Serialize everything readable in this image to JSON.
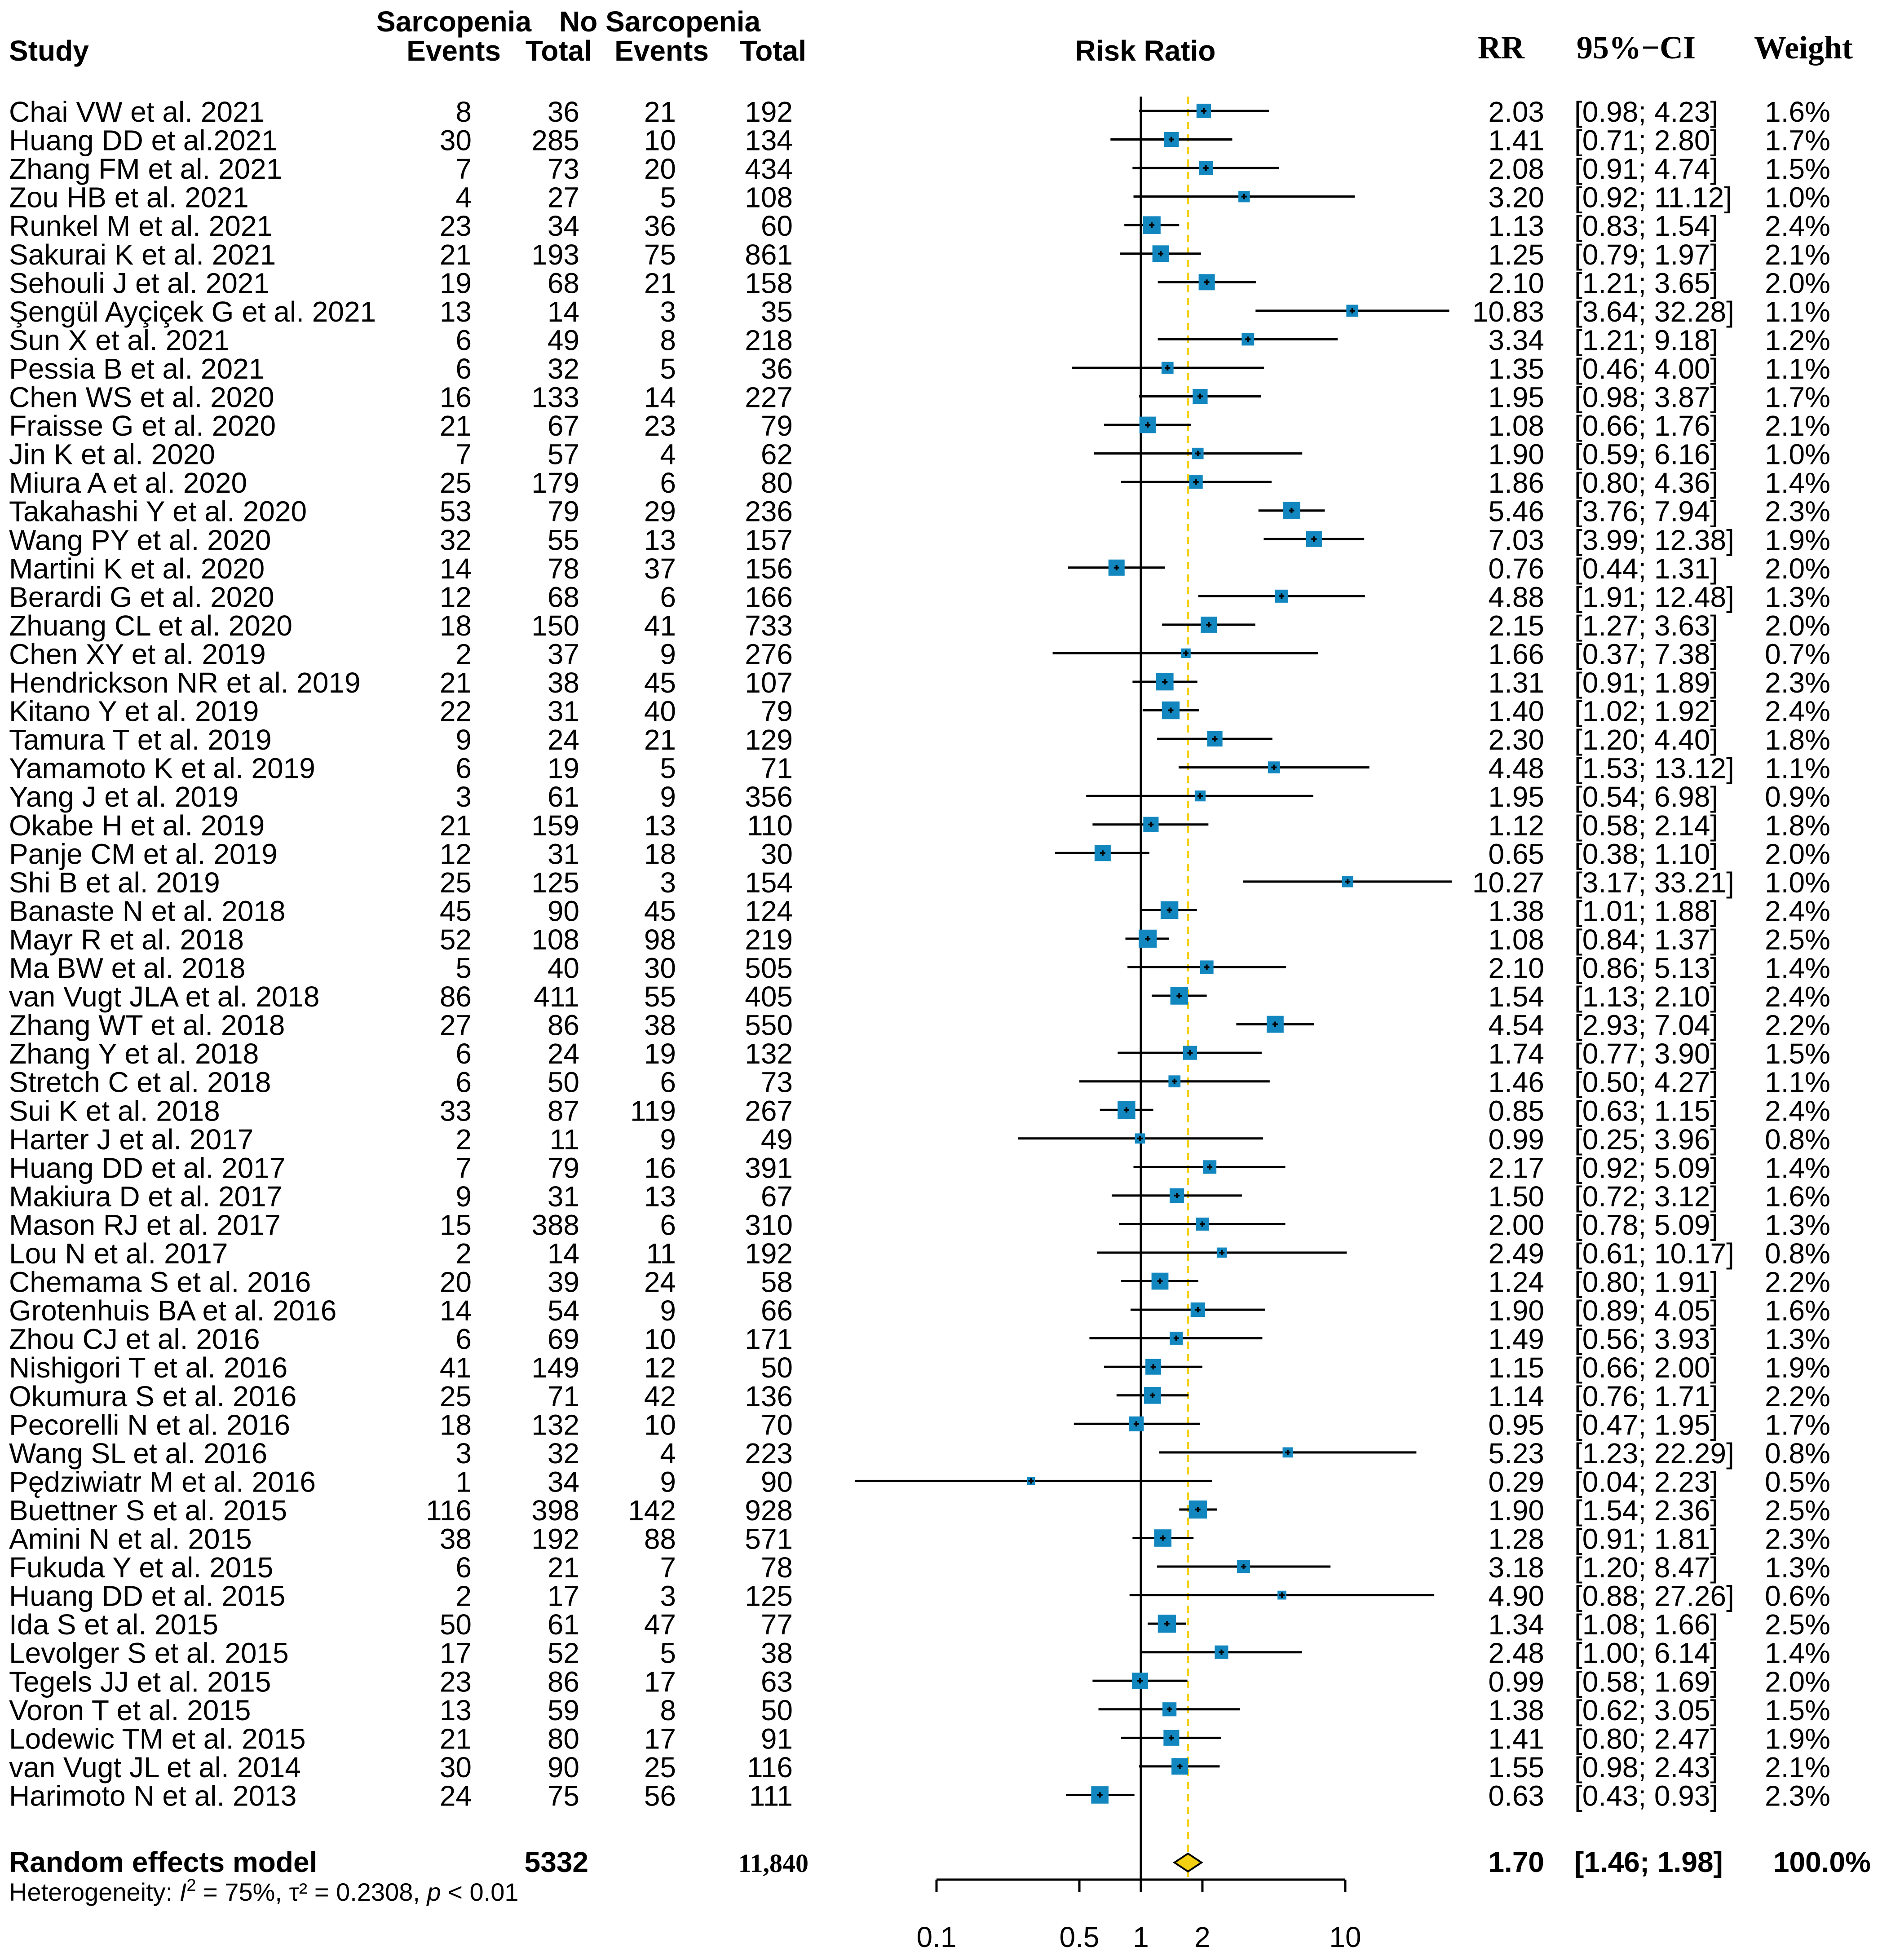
{
  "chart_data": {
    "type": "forest",
    "title": "Risk Ratio",
    "header": {
      "group1": "Sarcopenia",
      "group2": "No Sarcopenia",
      "study": "Study",
      "events": "Events",
      "total": "Total",
      "rr": "RR",
      "ci": "95%−CI",
      "weight": "Weight"
    },
    "scale": "log",
    "x_ticks": [
      0.1,
      0.5,
      1,
      2,
      10
    ],
    "x_tick_labels": [
      "0.1",
      "0.5",
      "1",
      "2",
      "10"
    ],
    "xlim": [
      0.1,
      10
    ],
    "null_line": 1,
    "pooled_line": 1.7,
    "colors": {
      "box": "#1287bf",
      "line": "#000000",
      "diamond": "#f4d012",
      "pooled_line": "#f4d012"
    },
    "studies": [
      {
        "study": "Chai VW et al. 2021",
        "e1": "8",
        "n1": "36",
        "e2": "21",
        "n2": "192",
        "rr_text": "2.03",
        "ci_text": "[0.98; 4.23]",
        "w_text": "1.6%",
        "rr": 2.03,
        "lo": 0.98,
        "hi": 4.23,
        "w": 1.6
      },
      {
        "study": "Huang DD et al.2021",
        "e1": "30",
        "n1": "285",
        "e2": "10",
        "n2": "134",
        "rr_text": "1.41",
        "ci_text": "[0.71; 2.80]",
        "w_text": "1.7%",
        "rr": 1.41,
        "lo": 0.71,
        "hi": 2.8,
        "w": 1.7
      },
      {
        "study": "Zhang FM et al. 2021",
        "e1": "7",
        "n1": "73",
        "e2": "20",
        "n2": "434",
        "rr_text": "2.08",
        "ci_text": "[0.91; 4.74]",
        "w_text": "1.5%",
        "rr": 2.08,
        "lo": 0.91,
        "hi": 4.74,
        "w": 1.5
      },
      {
        "study": "Zou HB et al. 2021",
        "e1": "4",
        "n1": "27",
        "e2": "5",
        "n2": "108",
        "rr_text": "3.20",
        "ci_text": "[0.92; 11.12]",
        "w_text": "1.0%",
        "rr": 3.2,
        "lo": 0.92,
        "hi": 11.12,
        "w": 1.0
      },
      {
        "study": "Runkel M et al. 2021",
        "e1": "23",
        "n1": "34",
        "e2": "36",
        "n2": "60",
        "rr_text": "1.13",
        "ci_text": "[0.83; 1.54]",
        "w_text": "2.4%",
        "rr": 1.13,
        "lo": 0.83,
        "hi": 1.54,
        "w": 2.4
      },
      {
        "study": "Sakurai K et al. 2021",
        "e1": "21",
        "n1": "193",
        "e2": "75",
        "n2": "861",
        "rr_text": "1.25",
        "ci_text": "[0.79; 1.97]",
        "w_text": "2.1%",
        "rr": 1.25,
        "lo": 0.79,
        "hi": 1.97,
        "w": 2.1
      },
      {
        "study": "Sehouli J et al. 2021",
        "e1": "19",
        "n1": "68",
        "e2": "21",
        "n2": "158",
        "rr_text": "2.10",
        "ci_text": "[1.21; 3.65]",
        "w_text": "2.0%",
        "rr": 2.1,
        "lo": 1.21,
        "hi": 3.65,
        "w": 2.0
      },
      {
        "study": "Şengül Ayçiçek G et al. 2021",
        "e1": "13",
        "n1": "14",
        "e2": "3",
        "n2": "35",
        "rr_text": "10.83",
        "ci_text": "[3.64; 32.28]",
        "w_text": "1.1%",
        "rr": 10.83,
        "lo": 3.64,
        "hi": 32.28,
        "w": 1.1
      },
      {
        "study": "Sun X et al. 2021",
        "e1": "6",
        "n1": "49",
        "e2": "8",
        "n2": "218",
        "rr_text": "3.34",
        "ci_text": "[1.21; 9.18]",
        "w_text": "1.2%",
        "rr": 3.34,
        "lo": 1.21,
        "hi": 9.18,
        "w": 1.2
      },
      {
        "study": "Pessia B et al. 2021",
        "e1": "6",
        "n1": "32",
        "e2": "5",
        "n2": "36",
        "rr_text": "1.35",
        "ci_text": "[0.46; 4.00]",
        "w_text": "1.1%",
        "rr": 1.35,
        "lo": 0.46,
        "hi": 4.0,
        "w": 1.1
      },
      {
        "study": "Chen WS et al. 2020",
        "e1": "16",
        "n1": "133",
        "e2": "14",
        "n2": "227",
        "rr_text": "1.95",
        "ci_text": "[0.98; 3.87]",
        "w_text": "1.7%",
        "rr": 1.95,
        "lo": 0.98,
        "hi": 3.87,
        "w": 1.7
      },
      {
        "study": "Fraisse G et al. 2020",
        "e1": "21",
        "n1": "67",
        "e2": "23",
        "n2": "79",
        "rr_text": "1.08",
        "ci_text": "[0.66; 1.76]",
        "w_text": "2.1%",
        "rr": 1.08,
        "lo": 0.66,
        "hi": 1.76,
        "w": 2.1
      },
      {
        "study": "Jin K et al. 2020",
        "e1": "7",
        "n1": "57",
        "e2": "4",
        "n2": "62",
        "rr_text": "1.90",
        "ci_text": "[0.59; 6.16]",
        "w_text": "1.0%",
        "rr": 1.9,
        "lo": 0.59,
        "hi": 6.16,
        "w": 1.0
      },
      {
        "study": "Miura A et al. 2020",
        "e1": "25",
        "n1": "179",
        "e2": "6",
        "n2": "80",
        "rr_text": "1.86",
        "ci_text": "[0.80; 4.36]",
        "w_text": "1.4%",
        "rr": 1.86,
        "lo": 0.8,
        "hi": 4.36,
        "w": 1.4
      },
      {
        "study": "Takahashi Y et al. 2020",
        "e1": "53",
        "n1": "79",
        "e2": "29",
        "n2": "236",
        "rr_text": "5.46",
        "ci_text": "[3.76; 7.94]",
        "w_text": "2.3%",
        "rr": 5.46,
        "lo": 3.76,
        "hi": 7.94,
        "w": 2.3
      },
      {
        "study": "Wang PY et al. 2020",
        "e1": "32",
        "n1": "55",
        "e2": "13",
        "n2": "157",
        "rr_text": "7.03",
        "ci_text": "[3.99; 12.38]",
        "w_text": "1.9%",
        "rr": 7.03,
        "lo": 3.99,
        "hi": 12.38,
        "w": 1.9
      },
      {
        "study": "Martini K et al. 2020",
        "e1": "14",
        "n1": "78",
        "e2": "37",
        "n2": "156",
        "rr_text": "0.76",
        "ci_text": "[0.44; 1.31]",
        "w_text": "2.0%",
        "rr": 0.76,
        "lo": 0.44,
        "hi": 1.31,
        "w": 2.0
      },
      {
        "study": "Berardi G et al. 2020",
        "e1": "12",
        "n1": "68",
        "e2": "6",
        "n2": "166",
        "rr_text": "4.88",
        "ci_text": "[1.91; 12.48]",
        "w_text": "1.3%",
        "rr": 4.88,
        "lo": 1.91,
        "hi": 12.48,
        "w": 1.3
      },
      {
        "study": "Zhuang CL et al. 2020",
        "e1": "18",
        "n1": "150",
        "e2": "41",
        "n2": "733",
        "rr_text": "2.15",
        "ci_text": "[1.27; 3.63]",
        "w_text": "2.0%",
        "rr": 2.15,
        "lo": 1.27,
        "hi": 3.63,
        "w": 2.0
      },
      {
        "study": "Chen XY et al. 2019",
        "e1": "2",
        "n1": "37",
        "e2": "9",
        "n2": "276",
        "rr_text": "1.66",
        "ci_text": "[0.37; 7.38]",
        "w_text": "0.7%",
        "rr": 1.66,
        "lo": 0.37,
        "hi": 7.38,
        "w": 0.7
      },
      {
        "study": "Hendrickson NR et al. 2019",
        "e1": "21",
        "n1": "38",
        "e2": "45",
        "n2": "107",
        "rr_text": "1.31",
        "ci_text": "[0.91; 1.89]",
        "w_text": "2.3%",
        "rr": 1.31,
        "lo": 0.91,
        "hi": 1.89,
        "w": 2.3
      },
      {
        "study": "Kitano Y et al. 2019",
        "e1": "22",
        "n1": "31",
        "e2": "40",
        "n2": "79",
        "rr_text": "1.40",
        "ci_text": "[1.02; 1.92]",
        "w_text": "2.4%",
        "rr": 1.4,
        "lo": 1.02,
        "hi": 1.92,
        "w": 2.4
      },
      {
        "study": "Tamura T et al. 2019",
        "e1": "9",
        "n1": "24",
        "e2": "21",
        "n2": "129",
        "rr_text": "2.30",
        "ci_text": "[1.20; 4.40]",
        "w_text": "1.8%",
        "rr": 2.3,
        "lo": 1.2,
        "hi": 4.4,
        "w": 1.8
      },
      {
        "study": "Yamamoto K et al. 2019",
        "e1": "6",
        "n1": "19",
        "e2": "5",
        "n2": "71",
        "rr_text": "4.48",
        "ci_text": "[1.53; 13.12]",
        "w_text": "1.1%",
        "rr": 4.48,
        "lo": 1.53,
        "hi": 13.12,
        "w": 1.1
      },
      {
        "study": "Yang J et al. 2019",
        "e1": "3",
        "n1": "61",
        "e2": "9",
        "n2": "356",
        "rr_text": "1.95",
        "ci_text": "[0.54; 6.98]",
        "w_text": "0.9%",
        "rr": 1.95,
        "lo": 0.54,
        "hi": 6.98,
        "w": 0.9
      },
      {
        "study": "Okabe H et al. 2019",
        "e1": "21",
        "n1": "159",
        "e2": "13",
        "n2": "110",
        "rr_text": "1.12",
        "ci_text": "[0.58; 2.14]",
        "w_text": "1.8%",
        "rr": 1.12,
        "lo": 0.58,
        "hi": 2.14,
        "w": 1.8
      },
      {
        "study": "Panje CM et al. 2019",
        "e1": "12",
        "n1": "31",
        "e2": "18",
        "n2": "30",
        "rr_text": "0.65",
        "ci_text": "[0.38; 1.10]",
        "w_text": "2.0%",
        "rr": 0.65,
        "lo": 0.38,
        "hi": 1.1,
        "w": 2.0
      },
      {
        "study": "Shi B et al. 2019",
        "e1": "25",
        "n1": "125",
        "e2": "3",
        "n2": "154",
        "rr_text": "10.27",
        "ci_text": "[3.17; 33.21]",
        "w_text": "1.0%",
        "rr": 10.27,
        "lo": 3.17,
        "hi": 33.21,
        "w": 1.0
      },
      {
        "study": "Banaste N et al. 2018",
        "e1": "45",
        "n1": "90",
        "e2": "45",
        "n2": "124",
        "rr_text": "1.38",
        "ci_text": "[1.01; 1.88]",
        "w_text": "2.4%",
        "rr": 1.38,
        "lo": 1.01,
        "hi": 1.88,
        "w": 2.4
      },
      {
        "study": "Mayr R et al. 2018",
        "e1": "52",
        "n1": "108",
        "e2": "98",
        "n2": "219",
        "rr_text": "1.08",
        "ci_text": "[0.84; 1.37]",
        "w_text": "2.5%",
        "rr": 1.08,
        "lo": 0.84,
        "hi": 1.37,
        "w": 2.5
      },
      {
        "study": "Ma BW et al. 2018",
        "e1": "5",
        "n1": "40",
        "e2": "30",
        "n2": "505",
        "rr_text": "2.10",
        "ci_text": "[0.86; 5.13]",
        "w_text": "1.4%",
        "rr": 2.1,
        "lo": 0.86,
        "hi": 5.13,
        "w": 1.4
      },
      {
        "study": "van Vugt JLA et al. 2018",
        "e1": "86",
        "n1": "411",
        "e2": "55",
        "n2": "405",
        "rr_text": "1.54",
        "ci_text": "[1.13; 2.10]",
        "w_text": "2.4%",
        "rr": 1.54,
        "lo": 1.13,
        "hi": 2.1,
        "w": 2.4
      },
      {
        "study": "Zhang WT et al. 2018",
        "e1": "27",
        "n1": "86",
        "e2": "38",
        "n2": "550",
        "rr_text": "4.54",
        "ci_text": "[2.93; 7.04]",
        "w_text": "2.2%",
        "rr": 4.54,
        "lo": 2.93,
        "hi": 7.04,
        "w": 2.2
      },
      {
        "study": "Zhang Y et al. 2018",
        "e1": "6",
        "n1": "24",
        "e2": "19",
        "n2": "132",
        "rr_text": "1.74",
        "ci_text": "[0.77; 3.90]",
        "w_text": "1.5%",
        "rr": 1.74,
        "lo": 0.77,
        "hi": 3.9,
        "w": 1.5
      },
      {
        "study": "Stretch C et al. 2018",
        "e1": "6",
        "n1": "50",
        "e2": "6",
        "n2": "73",
        "rr_text": "1.46",
        "ci_text": "[0.50; 4.27]",
        "w_text": "1.1%",
        "rr": 1.46,
        "lo": 0.5,
        "hi": 4.27,
        "w": 1.1
      },
      {
        "study": "Sui K et al. 2018",
        "e1": "33",
        "n1": "87",
        "e2": "119",
        "n2": "267",
        "rr_text": "0.85",
        "ci_text": "[0.63; 1.15]",
        "w_text": "2.4%",
        "rr": 0.85,
        "lo": 0.63,
        "hi": 1.15,
        "w": 2.4
      },
      {
        "study": "Harter J et al. 2017",
        "e1": "2",
        "n1": "11",
        "e2": "9",
        "n2": "49",
        "rr_text": "0.99",
        "ci_text": "[0.25; 3.96]",
        "w_text": "0.8%",
        "rr": 0.99,
        "lo": 0.25,
        "hi": 3.96,
        "w": 0.8
      },
      {
        "study": "Huang DD et al. 2017",
        "e1": "7",
        "n1": "79",
        "e2": "16",
        "n2": "391",
        "rr_text": "2.17",
        "ci_text": "[0.92; 5.09]",
        "w_text": "1.4%",
        "rr": 2.17,
        "lo": 0.92,
        "hi": 5.09,
        "w": 1.4
      },
      {
        "study": "Makiura D et al. 2017",
        "e1": "9",
        "n1": "31",
        "e2": "13",
        "n2": "67",
        "rr_text": "1.50",
        "ci_text": "[0.72; 3.12]",
        "w_text": "1.6%",
        "rr": 1.5,
        "lo": 0.72,
        "hi": 3.12,
        "w": 1.6
      },
      {
        "study": "Mason RJ et al. 2017",
        "e1": "15",
        "n1": "388",
        "e2": "6",
        "n2": "310",
        "rr_text": "2.00",
        "ci_text": "[0.78; 5.09]",
        "w_text": "1.3%",
        "rr": 2.0,
        "lo": 0.78,
        "hi": 5.09,
        "w": 1.3
      },
      {
        "study": "Lou N et al. 2017",
        "e1": "2",
        "n1": "14",
        "e2": "11",
        "n2": "192",
        "rr_text": "2.49",
        "ci_text": "[0.61; 10.17]",
        "w_text": "0.8%",
        "rr": 2.49,
        "lo": 0.61,
        "hi": 10.17,
        "w": 0.8
      },
      {
        "study": "Chemama S et al. 2016",
        "e1": "20",
        "n1": "39",
        "e2": "24",
        "n2": "58",
        "rr_text": "1.24",
        "ci_text": "[0.80; 1.91]",
        "w_text": "2.2%",
        "rr": 1.24,
        "lo": 0.8,
        "hi": 1.91,
        "w": 2.2
      },
      {
        "study": "Grotenhuis BA et al. 2016",
        "e1": "14",
        "n1": "54",
        "e2": "9",
        "n2": "66",
        "rr_text": "1.90",
        "ci_text": "[0.89; 4.05]",
        "w_text": "1.6%",
        "rr": 1.9,
        "lo": 0.89,
        "hi": 4.05,
        "w": 1.6
      },
      {
        "study": "Zhou CJ et al. 2016",
        "e1": "6",
        "n1": "69",
        "e2": "10",
        "n2": "171",
        "rr_text": "1.49",
        "ci_text": "[0.56; 3.93]",
        "w_text": "1.3%",
        "rr": 1.49,
        "lo": 0.56,
        "hi": 3.93,
        "w": 1.3
      },
      {
        "study": "Nishigori T et al. 2016",
        "e1": "41",
        "n1": "149",
        "e2": "12",
        "n2": "50",
        "rr_text": "1.15",
        "ci_text": "[0.66; 2.00]",
        "w_text": "1.9%",
        "rr": 1.15,
        "lo": 0.66,
        "hi": 2.0,
        "w": 1.9
      },
      {
        "study": "Okumura S et al. 2016",
        "e1": "25",
        "n1": "71",
        "e2": "42",
        "n2": "136",
        "rr_text": "1.14",
        "ci_text": "[0.76; 1.71]",
        "w_text": "2.2%",
        "rr": 1.14,
        "lo": 0.76,
        "hi": 1.71,
        "w": 2.2
      },
      {
        "study": "Pecorelli N et al. 2016",
        "e1": "18",
        "n1": "132",
        "e2": "10",
        "n2": "70",
        "rr_text": "0.95",
        "ci_text": "[0.47; 1.95]",
        "w_text": "1.7%",
        "rr": 0.95,
        "lo": 0.47,
        "hi": 1.95,
        "w": 1.7
      },
      {
        "study": "Wang SL et al. 2016",
        "e1": "3",
        "n1": "32",
        "e2": "4",
        "n2": "223",
        "rr_text": "5.23",
        "ci_text": "[1.23; 22.29]",
        "w_text": "0.8%",
        "rr": 5.23,
        "lo": 1.23,
        "hi": 22.29,
        "w": 0.8
      },
      {
        "study": "Pędziwiatr M et al. 2016",
        "e1": "1",
        "n1": "34",
        "e2": "9",
        "n2": "90",
        "rr_text": "0.29",
        "ci_text": "[0.04; 2.23]",
        "w_text": "0.5%",
        "rr": 0.29,
        "lo": 0.04,
        "hi": 2.23,
        "w": 0.5
      },
      {
        "study": "Buettner S et al. 2015",
        "e1": "116",
        "n1": "398",
        "e2": "142",
        "n2": "928",
        "rr_text": "1.90",
        "ci_text": "[1.54; 2.36]",
        "w_text": "2.5%",
        "rr": 1.9,
        "lo": 1.54,
        "hi": 2.36,
        "w": 2.5
      },
      {
        "study": "Amini N et al. 2015",
        "e1": "38",
        "n1": "192",
        "e2": "88",
        "n2": "571",
        "rr_text": "1.28",
        "ci_text": "[0.91; 1.81]",
        "w_text": "2.3%",
        "rr": 1.28,
        "lo": 0.91,
        "hi": 1.81,
        "w": 2.3
      },
      {
        "study": "Fukuda Y et al. 2015",
        "e1": "6",
        "n1": "21",
        "e2": "7",
        "n2": "78",
        "rr_text": "3.18",
        "ci_text": "[1.20; 8.47]",
        "w_text": "1.3%",
        "rr": 3.18,
        "lo": 1.2,
        "hi": 8.47,
        "w": 1.3
      },
      {
        "study": "Huang DD et al. 2015",
        "e1": "2",
        "n1": "17",
        "e2": "3",
        "n2": "125",
        "rr_text": "4.90",
        "ci_text": "[0.88; 27.26]",
        "w_text": "0.6%",
        "rr": 4.9,
        "lo": 0.88,
        "hi": 27.26,
        "w": 0.6
      },
      {
        "study": "Ida S et al. 2015",
        "e1": "50",
        "n1": "61",
        "e2": "47",
        "n2": "77",
        "rr_text": "1.34",
        "ci_text": "[1.08; 1.66]",
        "w_text": "2.5%",
        "rr": 1.34,
        "lo": 1.08,
        "hi": 1.66,
        "w": 2.5
      },
      {
        "study": "Levolger S et al. 2015",
        "e1": "17",
        "n1": "52",
        "e2": "5",
        "n2": "38",
        "rr_text": "2.48",
        "ci_text": "[1.00; 6.14]",
        "w_text": "1.4%",
        "rr": 2.48,
        "lo": 1.0,
        "hi": 6.14,
        "w": 1.4
      },
      {
        "study": "Tegels JJ et al. 2015",
        "e1": "23",
        "n1": "86",
        "e2": "17",
        "n2": "63",
        "rr_text": "0.99",
        "ci_text": "[0.58; 1.69]",
        "w_text": "2.0%",
        "rr": 0.99,
        "lo": 0.58,
        "hi": 1.69,
        "w": 2.0
      },
      {
        "study": "Voron T et al. 2015",
        "e1": "13",
        "n1": "59",
        "e2": "8",
        "n2": "50",
        "rr_text": "1.38",
        "ci_text": "[0.62; 3.05]",
        "w_text": "1.5%",
        "rr": 1.38,
        "lo": 0.62,
        "hi": 3.05,
        "w": 1.5
      },
      {
        "study": "Lodewic TM et al. 2015",
        "e1": "21",
        "n1": "80",
        "e2": "17",
        "n2": "91",
        "rr_text": "1.41",
        "ci_text": "[0.80; 2.47]",
        "w_text": "1.9%",
        "rr": 1.41,
        "lo": 0.8,
        "hi": 2.47,
        "w": 1.9
      },
      {
        "study": "van Vugt JL et al. 2014",
        "e1": "30",
        "n1": "90",
        "e2": "25",
        "n2": "116",
        "rr_text": "1.55",
        "ci_text": "[0.98; 2.43]",
        "w_text": "2.1%",
        "rr": 1.55,
        "lo": 0.98,
        "hi": 2.43,
        "w": 2.1
      },
      {
        "study": "Harimoto N et al. 2013",
        "e1": "24",
        "n1": "75",
        "e2": "56",
        "n2": "111",
        "rr_text": "0.63",
        "ci_text": "[0.43; 0.93]",
        "w_text": "2.3%",
        "rr": 0.63,
        "lo": 0.43,
        "hi": 0.93,
        "w": 2.3
      }
    ],
    "pooled": {
      "label": "Random effects model",
      "n1_text": "5332",
      "n2_text": "11,840",
      "rr_text": "1.70",
      "ci_text": "[1.46; 1.98]",
      "w_text": "100.0%",
      "rr": 1.7,
      "lo": 1.46,
      "hi": 1.98
    },
    "heterogeneity": {
      "prefix": "Heterogeneity: ",
      "i2_symbol": "I",
      "i2_sup": "2",
      "i2_value": " = 75%, ",
      "tau2": "τ² = 0.2308, ",
      "p_symbol": "p",
      "p_value": " < 0.01"
    }
  }
}
